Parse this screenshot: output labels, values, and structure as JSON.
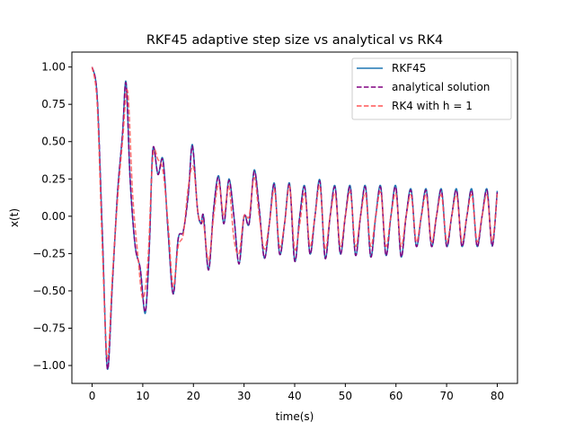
{
  "chart_data": {
    "type": "line",
    "title": "RKF45 adaptive step size vs analytical vs RK4",
    "xlabel": "time(s)",
    "ylabel": "x(t)",
    "xlim": [
      -4,
      84
    ],
    "ylim": [
      -1.12,
      1.1
    ],
    "xticks": [
      0,
      10,
      20,
      30,
      40,
      50,
      60,
      70,
      80
    ],
    "yticks": [
      -1.0,
      -0.75,
      -0.5,
      -0.25,
      0.0,
      0.25,
      0.5,
      0.75,
      1.0
    ],
    "xtick_labels": [
      "0",
      "10",
      "20",
      "30",
      "40",
      "50",
      "60",
      "70",
      "80"
    ],
    "ytick_labels": [
      "−1.00",
      "−0.75",
      "−0.50",
      "−0.25",
      "0.00",
      "0.25",
      "0.50",
      "0.75",
      "1.00"
    ],
    "grid": false,
    "legend_position": "top-right",
    "x_range": [
      0,
      80
    ],
    "series": [
      {
        "name": "RKF45",
        "color": "#1f77b4",
        "style": "solid",
        "points": [
          [
            0,
            1.0
          ],
          [
            1,
            0.8
          ],
          [
            2,
            -0.1
          ],
          [
            3,
            -1.02
          ],
          [
            4,
            -0.45
          ],
          [
            5,
            0.15
          ],
          [
            6,
            0.55
          ],
          [
            6.7,
            0.9
          ],
          [
            7.5,
            0.25
          ],
          [
            8.5,
            -0.2
          ],
          [
            9.5,
            -0.35
          ],
          [
            10.5,
            -0.65
          ],
          [
            11.3,
            -0.2
          ],
          [
            12,
            0.45
          ],
          [
            13,
            0.28
          ],
          [
            14,
            0.38
          ],
          [
            15,
            -0.1
          ],
          [
            16,
            -0.52
          ],
          [
            17,
            -0.15
          ],
          [
            18,
            -0.1
          ],
          [
            19,
            0.15
          ],
          [
            19.8,
            0.48
          ],
          [
            20.8,
            0.05
          ],
          [
            21.5,
            -0.05
          ],
          [
            22,
            0.0
          ],
          [
            23,
            -0.36
          ],
          [
            24,
            0.05
          ],
          [
            25,
            0.27
          ],
          [
            26,
            -0.05
          ],
          [
            27,
            0.25
          ],
          [
            28,
            0.0
          ],
          [
            29,
            -0.32
          ],
          [
            30,
            0.0
          ],
          [
            31,
            -0.05
          ],
          [
            32,
            0.31
          ],
          [
            33,
            0.05
          ],
          [
            34,
            -0.28
          ],
          [
            35,
            -0.05
          ],
          [
            36,
            0.22
          ],
          [
            37,
            -0.25
          ],
          [
            38,
            -0.05
          ],
          [
            39,
            0.22
          ],
          [
            40,
            -0.3
          ],
          [
            41,
            0.0
          ],
          [
            42,
            0.2
          ],
          [
            43,
            -0.25
          ],
          [
            44,
            0.0
          ],
          [
            45,
            0.24
          ],
          [
            46,
            -0.28
          ],
          [
            47,
            0.0
          ],
          [
            48,
            0.2
          ],
          [
            49,
            -0.25
          ],
          [
            50,
            0.0
          ],
          [
            51,
            0.2
          ],
          [
            52,
            -0.26
          ],
          [
            53,
            0.0
          ],
          [
            54,
            0.2
          ],
          [
            55,
            -0.27
          ],
          [
            56,
            0.0
          ],
          [
            57,
            0.2
          ],
          [
            58,
            -0.26
          ],
          [
            59,
            0.0
          ],
          [
            60,
            0.2
          ],
          [
            61,
            -0.27
          ],
          [
            62,
            0.0
          ],
          [
            63,
            0.18
          ],
          [
            64,
            -0.2
          ],
          [
            65,
            0.0
          ],
          [
            66,
            0.18
          ],
          [
            67,
            -0.2
          ],
          [
            68,
            0.0
          ],
          [
            69,
            0.18
          ],
          [
            70,
            -0.2
          ],
          [
            71,
            0.0
          ],
          [
            72,
            0.18
          ],
          [
            73,
            -0.2
          ],
          [
            74,
            0.0
          ],
          [
            75,
            0.18
          ],
          [
            76,
            -0.2
          ],
          [
            77,
            0.0
          ],
          [
            78,
            0.18
          ],
          [
            79,
            -0.2
          ],
          [
            80,
            0.17
          ]
        ]
      },
      {
        "name": "analytical solution",
        "color": "#800080",
        "style": "dashed",
        "points": [
          [
            0,
            1.0
          ],
          [
            1,
            0.8
          ],
          [
            2,
            -0.1
          ],
          [
            3,
            -1.02
          ],
          [
            4,
            -0.45
          ],
          [
            5,
            0.15
          ],
          [
            6,
            0.55
          ],
          [
            6.7,
            0.89
          ],
          [
            7.5,
            0.25
          ],
          [
            8.5,
            -0.2
          ],
          [
            9.5,
            -0.35
          ],
          [
            10.5,
            -0.64
          ],
          [
            11.3,
            -0.2
          ],
          [
            12,
            0.45
          ],
          [
            13,
            0.28
          ],
          [
            14,
            0.37
          ],
          [
            15,
            -0.1
          ],
          [
            16,
            -0.52
          ],
          [
            17,
            -0.15
          ],
          [
            18,
            -0.1
          ],
          [
            19,
            0.15
          ],
          [
            19.8,
            0.47
          ],
          [
            20.8,
            0.05
          ],
          [
            21.5,
            -0.05
          ],
          [
            22,
            0.0
          ],
          [
            23,
            -0.36
          ],
          [
            24,
            0.05
          ],
          [
            25,
            0.26
          ],
          [
            26,
            -0.05
          ],
          [
            27,
            0.24
          ],
          [
            28,
            0.0
          ],
          [
            29,
            -0.32
          ],
          [
            30,
            0.0
          ],
          [
            31,
            -0.05
          ],
          [
            32,
            0.3
          ],
          [
            33,
            0.05
          ],
          [
            34,
            -0.28
          ],
          [
            35,
            -0.05
          ],
          [
            36,
            0.21
          ],
          [
            37,
            -0.25
          ],
          [
            38,
            -0.05
          ],
          [
            39,
            0.21
          ],
          [
            40,
            -0.3
          ],
          [
            41,
            0.0
          ],
          [
            42,
            0.19
          ],
          [
            43,
            -0.25
          ],
          [
            44,
            0.0
          ],
          [
            45,
            0.23
          ],
          [
            46,
            -0.28
          ],
          [
            47,
            0.0
          ],
          [
            48,
            0.19
          ],
          [
            49,
            -0.25
          ],
          [
            50,
            0.0
          ],
          [
            51,
            0.19
          ],
          [
            52,
            -0.26
          ],
          [
            53,
            0.0
          ],
          [
            54,
            0.19
          ],
          [
            55,
            -0.27
          ],
          [
            56,
            0.0
          ],
          [
            57,
            0.19
          ],
          [
            58,
            -0.26
          ],
          [
            59,
            0.0
          ],
          [
            60,
            0.19
          ],
          [
            61,
            -0.27
          ],
          [
            62,
            0.0
          ],
          [
            63,
            0.17
          ],
          [
            64,
            -0.2
          ],
          [
            65,
            0.0
          ],
          [
            66,
            0.17
          ],
          [
            67,
            -0.2
          ],
          [
            68,
            0.0
          ],
          [
            69,
            0.17
          ],
          [
            70,
            -0.2
          ],
          [
            71,
            0.0
          ],
          [
            72,
            0.17
          ],
          [
            73,
            -0.2
          ],
          [
            74,
            0.0
          ],
          [
            75,
            0.17
          ],
          [
            76,
            -0.2
          ],
          [
            77,
            0.0
          ],
          [
            78,
            0.17
          ],
          [
            79,
            -0.2
          ],
          [
            80,
            0.16
          ]
        ]
      },
      {
        "name": "RK4 with h = 1",
        "color": "#ff5555",
        "style": "dashed",
        "points": [
          [
            0,
            1.0
          ],
          [
            1,
            0.75
          ],
          [
            2,
            -0.2
          ],
          [
            3,
            -0.95
          ],
          [
            4,
            -0.4
          ],
          [
            5,
            0.1
          ],
          [
            6,
            0.5
          ],
          [
            7,
            0.84
          ],
          [
            8,
            0.15
          ],
          [
            9,
            -0.25
          ],
          [
            10,
            -0.55
          ],
          [
            11,
            -0.3
          ],
          [
            12,
            0.4
          ],
          [
            13,
            0.38
          ],
          [
            14,
            0.3
          ],
          [
            15,
            -0.05
          ],
          [
            16,
            -0.47
          ],
          [
            17,
            -0.2
          ],
          [
            18,
            -0.12
          ],
          [
            19,
            0.2
          ],
          [
            20,
            0.33
          ],
          [
            21,
            0.0
          ],
          [
            22,
            -0.05
          ],
          [
            23,
            -0.3
          ],
          [
            24,
            0.0
          ],
          [
            25,
            0.22
          ],
          [
            26,
            0.0
          ],
          [
            27,
            0.2
          ],
          [
            28,
            -0.15
          ],
          [
            29,
            -0.25
          ],
          [
            30,
            0.0
          ],
          [
            31,
            0.0
          ],
          [
            32,
            0.26
          ],
          [
            33,
            0.0
          ],
          [
            34,
            -0.22
          ],
          [
            35,
            -0.05
          ],
          [
            36,
            0.18
          ],
          [
            37,
            -0.2
          ],
          [
            38,
            -0.05
          ],
          [
            39,
            0.2
          ],
          [
            40,
            -0.22
          ],
          [
            41,
            -0.05
          ],
          [
            42,
            0.15
          ],
          [
            43,
            -0.2
          ],
          [
            44,
            0.0
          ],
          [
            45,
            0.2
          ],
          [
            46,
            -0.22
          ],
          [
            47,
            0.0
          ],
          [
            48,
            0.15
          ],
          [
            49,
            -0.2
          ],
          [
            50,
            0.0
          ],
          [
            51,
            0.16
          ],
          [
            52,
            -0.2
          ],
          [
            53,
            0.0
          ],
          [
            54,
            0.15
          ],
          [
            55,
            -0.2
          ],
          [
            56,
            0.0
          ],
          [
            57,
            0.16
          ],
          [
            58,
            -0.2
          ],
          [
            59,
            0.0
          ],
          [
            60,
            0.15
          ],
          [
            61,
            -0.2
          ],
          [
            62,
            0.0
          ],
          [
            63,
            0.14
          ],
          [
            64,
            -0.17
          ],
          [
            65,
            0.0
          ],
          [
            66,
            0.14
          ],
          [
            67,
            -0.17
          ],
          [
            68,
            0.0
          ],
          [
            69,
            0.14
          ],
          [
            70,
            -0.17
          ],
          [
            71,
            0.0
          ],
          [
            72,
            0.14
          ],
          [
            73,
            -0.17
          ],
          [
            74,
            0.0
          ],
          [
            75,
            0.14
          ],
          [
            76,
            -0.17
          ],
          [
            77,
            0.0
          ],
          [
            78,
            0.14
          ],
          [
            79,
            -0.17
          ],
          [
            80,
            0.15
          ]
        ]
      }
    ]
  }
}
